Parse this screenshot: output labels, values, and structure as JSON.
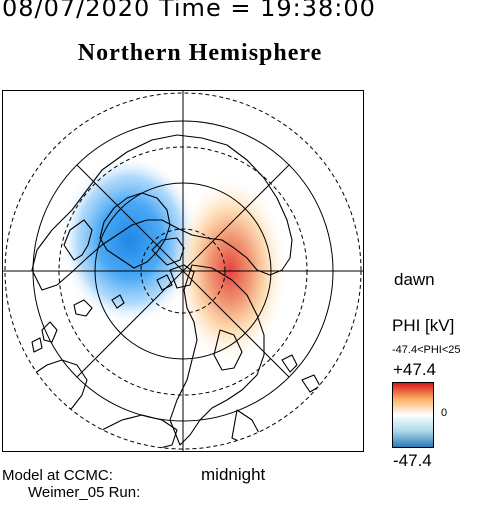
{
  "header": {
    "date": "08/07/2020",
    "time_label": "Time",
    "equals": "=",
    "time": "19:38:00"
  },
  "title": "Northern Hemisphere",
  "labels": {
    "dawn": "dawn",
    "midnight": "midnight",
    "model_line1": "Model at CCMC:",
    "model_line2": "Weimer_05 Run:"
  },
  "colorbar": {
    "label": "PHI [kV]",
    "range_text": "-47.4<PHI<25",
    "max_label": "+47.4",
    "zero_label": "0",
    "min_label": "-47.4",
    "colors": {
      "high": "#d7191c",
      "mid_high": "#fdae61",
      "zero": "#ffffff",
      "mid_low": "#abd9e9",
      "low": "#2c7bb6"
    }
  },
  "map": {
    "projection": "polar-stereographic",
    "potential_cells": {
      "negative_color": "#2c7bb6",
      "positive_color": "#d7191c"
    }
  }
}
